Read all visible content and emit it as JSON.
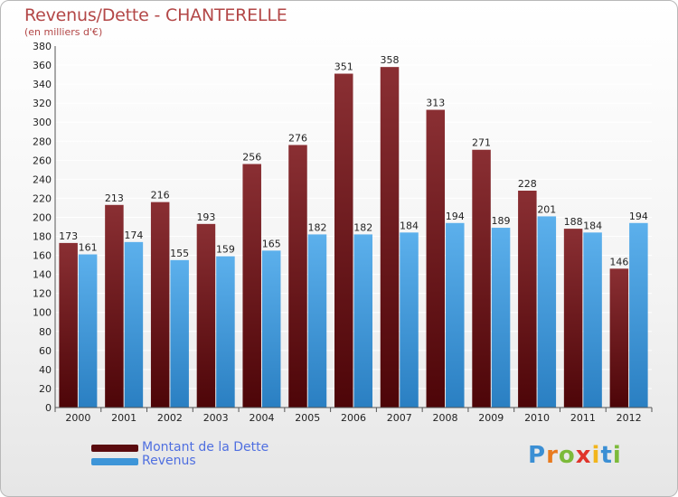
{
  "title": "Revenus/Dette - CHANTERELLE",
  "subtitle": "(en milliers d'€)",
  "colors": {
    "dette": "#6b1216",
    "revenus": "#3d95d8",
    "title": "#b34747",
    "legend_text": "#4f6fe0"
  },
  "legend": [
    {
      "label": "Montant de la Dette",
      "color": "#6b1216"
    },
    {
      "label": "Revenus",
      "color": "#3d95d8"
    }
  ],
  "logo": {
    "text": "Proxiti"
  },
  "chart_data": {
    "type": "bar",
    "title": "Revenus/Dette - CHANTERELLE",
    "subtitle": "(en milliers d'€)",
    "categories": [
      "2000",
      "2001",
      "2002",
      "2003",
      "2004",
      "2005",
      "2006",
      "2007",
      "2008",
      "2009",
      "2010",
      "2011",
      "2012"
    ],
    "series": [
      {
        "name": "Montant de la Dette",
        "color": "#6b1216",
        "values": [
          173,
          213,
          216,
          193,
          256,
          276,
          351,
          358,
          313,
          271,
          228,
          188,
          146
        ]
      },
      {
        "name": "Revenus",
        "color": "#3d95d8",
        "values": [
          161,
          174,
          155,
          159,
          165,
          182,
          182,
          184,
          194,
          189,
          201,
          184,
          194
        ]
      }
    ],
    "ylim": [
      0,
      380
    ],
    "ytick_step": 20,
    "grid": true,
    "legend_position": "bottom-left"
  }
}
